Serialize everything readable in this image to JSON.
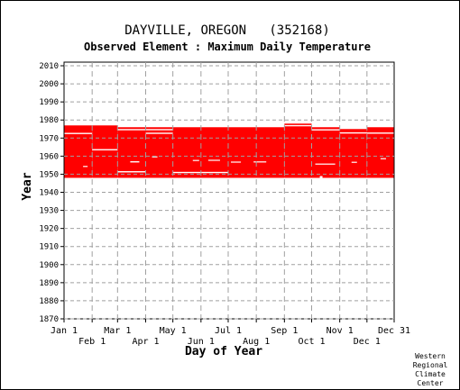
{
  "chart_data": {
    "type": "bar",
    "title": "DAYVILLE, OREGON   (352168)",
    "subtitle": "Observed Element : Maximum Daily Temperature",
    "xlabel": "Day of Year",
    "ylabel": "Year",
    "xlim": [
      1,
      365
    ],
    "ylim": [
      1870,
      2012
    ],
    "x_ticks_top_row": [
      {
        "label": "Jan 1",
        "day": 1
      },
      {
        "label": "Mar 1",
        "day": 60
      },
      {
        "label": "May 1",
        "day": 121
      },
      {
        "label": "Jul 1",
        "day": 182
      },
      {
        "label": "Sep 1",
        "day": 244
      },
      {
        "label": "Nov 1",
        "day": 305
      },
      {
        "label": "Dec 31",
        "day": 365
      }
    ],
    "x_ticks_bottom_row": [
      {
        "label": "Feb 1",
        "day": 32
      },
      {
        "label": "Apr 1",
        "day": 91
      },
      {
        "label": "Jun 1",
        "day": 152
      },
      {
        "label": "Aug 1",
        "day": 213
      },
      {
        "label": "Oct 1",
        "day": 274
      },
      {
        "label": "Dec 1",
        "day": 335
      }
    ],
    "y_ticks": [
      2010,
      2000,
      1990,
      1980,
      1970,
      1960,
      1950,
      1940,
      1930,
      1920,
      1910,
      1900,
      1890,
      1880,
      1870
    ],
    "grid": true,
    "series_color": "#ff0000",
    "coverage": [
      {
        "start_day": 1,
        "end_day": 32,
        "start_year": 1948,
        "end_year": 1977
      },
      {
        "start_day": 32,
        "end_day": 60,
        "start_year": 1948,
        "end_year": 1977
      },
      {
        "start_day": 60,
        "end_day": 244,
        "start_year": 1948,
        "end_year": 1976
      },
      {
        "start_day": 244,
        "end_day": 274,
        "start_year": 1948,
        "end_year": 1978
      },
      {
        "start_day": 274,
        "end_day": 305,
        "start_year": 1948,
        "end_year": 1976
      },
      {
        "start_day": 305,
        "end_day": 335,
        "start_year": 1948,
        "end_year": 1975
      },
      {
        "start_day": 335,
        "end_day": 365,
        "start_year": 1948,
        "end_year": 1976
      }
    ],
    "gaps": [
      {
        "start_day": 1,
        "end_day": 32,
        "start_year": 1972.2,
        "end_year": 1972.9
      },
      {
        "start_day": 32,
        "end_day": 60,
        "start_year": 1963.2,
        "end_year": 1963.9
      },
      {
        "start_day": 60,
        "end_day": 121,
        "start_year": 1974.3,
        "end_year": 1975.0
      },
      {
        "start_day": 60,
        "end_day": 91,
        "start_year": 1951.0,
        "end_year": 1951.7
      },
      {
        "start_day": 74,
        "end_day": 84,
        "start_year": 1956.5,
        "end_year": 1957.2
      },
      {
        "start_day": 91,
        "end_day": 121,
        "start_year": 1972.3,
        "end_year": 1973.0
      },
      {
        "start_day": 121,
        "end_day": 182,
        "start_year": 1950.6,
        "end_year": 1951.3
      },
      {
        "start_day": 244,
        "end_day": 274,
        "start_year": 1976.5,
        "end_year": 1977.2
      },
      {
        "start_day": 274,
        "end_day": 305,
        "start_year": 1974.2,
        "end_year": 1974.9
      },
      {
        "start_day": 305,
        "end_day": 335,
        "start_year": 1972.5,
        "end_year": 1973.2
      },
      {
        "start_day": 335,
        "end_day": 365,
        "start_year": 1972.4,
        "end_year": 1973.1
      },
      {
        "start_day": 22,
        "end_day": 27,
        "start_year": 1954.0,
        "end_year": 1954.6
      },
      {
        "start_day": 98,
        "end_day": 104,
        "start_year": 1959.3,
        "end_year": 1959.9
      },
      {
        "start_day": 143,
        "end_day": 150,
        "start_year": 1957.3,
        "end_year": 1957.9
      },
      {
        "start_day": 160,
        "end_day": 173,
        "start_year": 1957.4,
        "end_year": 1958.0
      },
      {
        "start_day": 185,
        "end_day": 196,
        "start_year": 1956.4,
        "end_year": 1957.0
      },
      {
        "start_day": 210,
        "end_day": 224,
        "start_year": 1956.5,
        "end_year": 1957.1
      },
      {
        "start_day": 278,
        "end_day": 300,
        "start_year": 1955.3,
        "end_year": 1955.9
      },
      {
        "start_day": 283,
        "end_day": 286,
        "start_year": 1948.0,
        "end_year": 1949.0
      },
      {
        "start_day": 318,
        "end_day": 324,
        "start_year": 1956.3,
        "end_year": 1956.9
      },
      {
        "start_day": 350,
        "end_day": 356,
        "start_year": 1958.3,
        "end_year": 1958.9
      }
    ]
  },
  "footer": {
    "credit_lines": [
      "Western",
      "Regional",
      "Climate",
      "Center"
    ]
  }
}
